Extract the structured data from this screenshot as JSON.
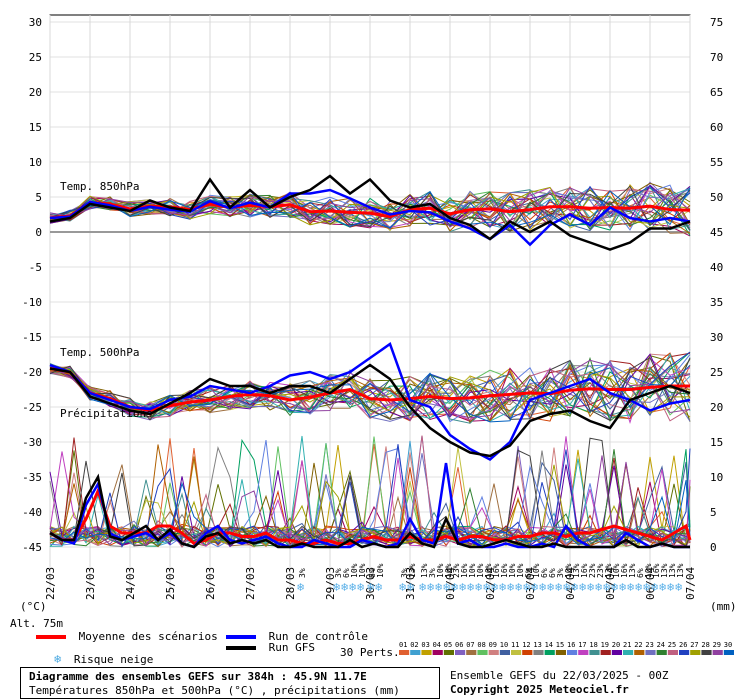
{
  "chart_data": {
    "type": "line",
    "title": "Diagramme des ensembles GEFS sur 384h : 45.9N 11.7E",
    "subtitle": "Températures 850hPa et 500hPa (°C) , précipitations (mm)",
    "ensemble_label": "Ensemble GEFS du 22/03/2025 - 00Z",
    "copyright": "Copyright 2025 Meteociel.fr",
    "left_axis": {
      "unit": "(°C)",
      "ticks": [
        30,
        25,
        20,
        15,
        10,
        5,
        0,
        -5,
        -10,
        -15,
        -20,
        -25,
        -30,
        -35,
        -40,
        -45
      ],
      "range": [
        -45,
        30
      ]
    },
    "right_axis": {
      "unit": "(mm)",
      "ticks": [
        75,
        70,
        65,
        60,
        55,
        50,
        45,
        40,
        35,
        30,
        25,
        20,
        15,
        10,
        5,
        0
      ]
    },
    "x_ticks": [
      "22/03",
      "23/03",
      "24/03",
      "25/03",
      "26/03",
      "27/03",
      "28/03",
      "29/03",
      "30/03",
      "31/03",
      "01/04",
      "02/04",
      "03/04",
      "04/04",
      "05/04",
      "06/04",
      "07/04"
    ],
    "altitude": "Alt. 75m",
    "panel_labels": {
      "t850": "Temp. 850hPa",
      "t500": "Temp. 500hPa",
      "precip": "Précipitations"
    },
    "legend": {
      "mean": "Moyenne des scénarios",
      "control": "Run de contrôle",
      "gfs": "Run GFS",
      "snow": "Risque neige",
      "perts_label": "30 Perts.",
      "pert_numbers": [
        "01",
        "02",
        "03",
        "04",
        "05",
        "06",
        "07",
        "08",
        "09",
        "10",
        "11",
        "12",
        "13",
        "14",
        "15",
        "16",
        "17",
        "18",
        "19",
        "20",
        "21",
        "22",
        "23",
        "24",
        "25",
        "26",
        "27",
        "28",
        "29",
        "30"
      ],
      "pert_colors": [
        "#e06030",
        "#40a0d0",
        "#c0a000",
        "#a00060",
        "#607000",
        "#8060c0",
        "#a07040",
        "#60c060",
        "#d08080",
        "#4060a0",
        "#c0c040",
        "#d04000",
        "#808080",
        "#00a060",
        "#806000",
        "#6080e0",
        "#c040c0",
        "#409090",
        "#a02020",
        "#6000a0",
        "#30b0b0",
        "#b06000",
        "#7070c0",
        "#308030",
        "#c06080",
        "#2040c0",
        "#a0a000",
        "#404040",
        "#9040a0",
        "#0060c0"
      ]
    },
    "snow_risk": [
      {
        "day": 6.3,
        "pct": "3%"
      },
      {
        "day": 7.2,
        "pct": "3%"
      },
      {
        "day": 7.4,
        "pct": "6%"
      },
      {
        "day": 7.6,
        "pct": "10%"
      },
      {
        "day": 7.8,
        "pct": "10%"
      },
      {
        "day": 8.05,
        "pct": "6%"
      },
      {
        "day": 8.25,
        "pct": "10%"
      },
      {
        "day": 8.85,
        "pct": "3%"
      },
      {
        "day": 9.05,
        "pct": "13%"
      },
      {
        "day": 9.35,
        "pct": "13%"
      },
      {
        "day": 9.55,
        "pct": "3%"
      },
      {
        "day": 9.75,
        "pct": "10%"
      },
      {
        "day": 9.95,
        "pct": "16%"
      },
      {
        "day": 10.15,
        "pct": "23%"
      },
      {
        "day": 10.35,
        "pct": "16%"
      },
      {
        "day": 10.55,
        "pct": "10%"
      },
      {
        "day": 10.75,
        "pct": "10%"
      },
      {
        "day": 10.95,
        "pct": "16%"
      },
      {
        "day": 11.15,
        "pct": "16%"
      },
      {
        "day": 11.35,
        "pct": "16%"
      },
      {
        "day": 11.55,
        "pct": "10%"
      },
      {
        "day": 11.75,
        "pct": "10%"
      },
      {
        "day": 11.95,
        "pct": "6%"
      },
      {
        "day": 12.15,
        "pct": "10%"
      },
      {
        "day": 12.35,
        "pct": "6%"
      },
      {
        "day": 12.55,
        "pct": "6%"
      },
      {
        "day": 12.75,
        "pct": "3%"
      },
      {
        "day": 12.95,
        "pct": "10%"
      },
      {
        "day": 13.15,
        "pct": "13%"
      },
      {
        "day": 13.35,
        "pct": "16%"
      },
      {
        "day": 13.55,
        "pct": "23%"
      },
      {
        "day": 13.75,
        "pct": "23%"
      },
      {
        "day": 13.95,
        "pct": "13%"
      },
      {
        "day": 14.15,
        "pct": "10%"
      },
      {
        "day": 14.35,
        "pct": "16%"
      },
      {
        "day": 14.55,
        "pct": "13%"
      },
      {
        "day": 14.75,
        "pct": "6%"
      },
      {
        "day": 14.95,
        "pct": "10%"
      },
      {
        "day": 15.15,
        "pct": "16%"
      },
      {
        "day": 15.35,
        "pct": "13%"
      },
      {
        "day": 15.55,
        "pct": "13%"
      },
      {
        "day": 15.75,
        "pct": "13%"
      }
    ],
    "series": [
      {
        "name": "Moyenne des scénarios",
        "role": "t850",
        "color": "#ff0000",
        "x": [
          0,
          0.5,
          1,
          1.5,
          2,
          2.5,
          3,
          3.5,
          4,
          4.5,
          5,
          5.5,
          6,
          6.5,
          7,
          7.5,
          8,
          8.5,
          9,
          9.5,
          10,
          10.5,
          11,
          11.5,
          12,
          12.5,
          13,
          13.5,
          14,
          14.5,
          15,
          15.5,
          16
        ],
        "y": [
          2,
          2.3,
          4.2,
          4,
          3.3,
          3.7,
          3.6,
          3.2,
          4,
          3.5,
          3.8,
          3.6,
          3.9,
          2.9,
          3,
          2.8,
          2.7,
          2.2,
          3.2,
          3.4,
          2.6,
          3.2,
          3.3,
          2.9,
          3.2,
          3.6,
          3.6,
          3.4,
          3.5,
          3.4,
          3.7,
          3.2,
          3.1
        ]
      },
      {
        "name": "Run de contrôle",
        "role": "t850",
        "color": "#0000ff",
        "x": [
          0,
          0.5,
          1,
          1.5,
          2,
          2.5,
          3,
          3.5,
          4,
          4.5,
          5,
          5.5,
          6,
          6.5,
          7,
          7.5,
          8,
          8.5,
          9,
          9.5,
          10,
          10.5,
          11,
          11.5,
          12,
          12.5,
          13,
          13.5,
          14,
          14.5,
          15,
          15.5,
          16
        ],
        "y": [
          2,
          2.2,
          4.3,
          3.8,
          3,
          3.6,
          3.2,
          2.9,
          4.4,
          3.4,
          4.2,
          3.5,
          5.5,
          5.5,
          6,
          4.8,
          3.5,
          2.5,
          3,
          2.8,
          1.5,
          0.5,
          -1,
          1,
          -1.8,
          1,
          2.5,
          1,
          3.5,
          2,
          1.5,
          2,
          1.5
        ]
      },
      {
        "name": "Run GFS",
        "role": "t850",
        "color": "#000000",
        "x": [
          0,
          0.5,
          1,
          1.5,
          2,
          2.5,
          3,
          3.5,
          4,
          4.5,
          5,
          5.5,
          6,
          6.5,
          7,
          7.5,
          8,
          8.5,
          9,
          9.5,
          10,
          10.5,
          11,
          11.5,
          12,
          12.5,
          13,
          13.5,
          14,
          14.5,
          15,
          15.5,
          16
        ],
        "y": [
          1.5,
          2,
          4,
          3.5,
          3,
          4.5,
          3.5,
          3,
          7.5,
          3.5,
          6,
          3.5,
          5,
          6,
          8,
          5.5,
          7.5,
          4.5,
          3.5,
          4,
          2,
          1,
          -1,
          1.5,
          0,
          1.5,
          -0.5,
          -1.5,
          -2.5,
          -1.5,
          0.5,
          0.5,
          1.5
        ]
      },
      {
        "name": "Moyenne des scénarios",
        "role": "t500",
        "color": "#ff0000",
        "x": [
          0,
          0.5,
          1,
          1.5,
          2,
          2.5,
          3,
          3.5,
          4,
          4.5,
          5,
          5.5,
          6,
          6.5,
          7,
          7.5,
          8,
          8.5,
          9,
          9.5,
          10,
          10.5,
          11,
          11.5,
          12,
          12.5,
          13,
          13.5,
          14,
          14.5,
          15,
          15.5,
          16
        ],
        "y": [
          -19.5,
          -20,
          -23,
          -23.8,
          -25,
          -25.5,
          -24.8,
          -24.3,
          -24,
          -23.5,
          -23.2,
          -23.4,
          -24,
          -23.6,
          -23,
          -22.5,
          -23.8,
          -24,
          -23.8,
          -23.5,
          -23.8,
          -23.7,
          -23.4,
          -23.2,
          -23,
          -23.1,
          -22.6,
          -22.4,
          -22.5,
          -22.5,
          -22.2,
          -22,
          -22
        ]
      },
      {
        "name": "Run de contrôle",
        "role": "t500",
        "color": "#0000ff",
        "x": [
          0,
          0.5,
          1,
          1.5,
          2,
          2.5,
          3,
          3.5,
          4,
          4.5,
          5,
          5.5,
          6,
          6.5,
          7,
          7.5,
          8,
          8.5,
          9,
          9.5,
          10,
          10.5,
          11,
          11.5,
          12,
          12.5,
          13,
          13.5,
          14,
          14.5,
          15,
          15.5,
          16
        ],
        "y": [
          -19,
          -20,
          -23,
          -24,
          -25,
          -25.3,
          -24,
          -23.5,
          -22,
          -22.5,
          -23,
          -22,
          -20.5,
          -20,
          -21,
          -20,
          -18,
          -16,
          -24,
          -25,
          -29,
          -31,
          -32.5,
          -30,
          -24,
          -23,
          -22,
          -21,
          -23,
          -24,
          -25.5,
          -24.5,
          -24
        ]
      },
      {
        "name": "Run GFS",
        "role": "t500",
        "color": "#000000",
        "x": [
          0,
          0.5,
          1,
          1.5,
          2,
          2.5,
          3,
          3.5,
          4,
          4.5,
          5,
          5.5,
          6,
          6.5,
          7,
          7.5,
          8,
          8.5,
          9,
          9.5,
          10,
          10.5,
          11,
          11.5,
          12,
          12.5,
          13,
          13.5,
          14,
          14.5,
          15,
          15.5,
          16
        ],
        "y": [
          -19.5,
          -20,
          -23.5,
          -24.5,
          -25.5,
          -26,
          -24.5,
          -23,
          -21,
          -22,
          -22,
          -23,
          -22,
          -22,
          -23,
          -21,
          -19,
          -21,
          -25,
          -28,
          -30,
          -31.5,
          -32,
          -30.5,
          -27,
          -26,
          -25.5,
          -27,
          -28,
          -24,
          -23,
          -22,
          -23
        ]
      },
      {
        "name": "Moyenne des scénarios",
        "role": "precip",
        "color": "#ff0000",
        "x": [
          0,
          0.3,
          0.6,
          0.9,
          1.2,
          1.5,
          1.8,
          2.1,
          2.4,
          2.7,
          3,
          3.3,
          3.6,
          3.9,
          4.2,
          4.5,
          4.8,
          5.1,
          5.4,
          5.7,
          6,
          6.3,
          6.6,
          6.9,
          7.2,
          7.5,
          7.8,
          8.1,
          8.4,
          8.7,
          9,
          9.3,
          9.6,
          9.9,
          10.2,
          10.5,
          10.8,
          11.1,
          11.4,
          11.7,
          12,
          12.3,
          12.6,
          12.9,
          13.2,
          13.5,
          13.8,
          14.1,
          14.4,
          14.7,
          15,
          15.3,
          15.6,
          15.9,
          16
        ],
        "y": [
          2,
          1,
          1,
          4,
          8,
          3,
          2,
          2,
          2,
          3,
          3,
          2,
          0.5,
          1,
          2,
          2,
          1.5,
          1.5,
          2,
          1,
          1,
          0.5,
          0.5,
          1,
          0.5,
          0.5,
          1,
          1.5,
          1,
          1,
          1.5,
          1,
          1,
          1.5,
          1,
          1.5,
          1.5,
          1,
          1,
          1.5,
          1.5,
          2,
          2,
          1.5,
          2,
          2,
          2.5,
          3,
          2.5,
          2,
          1.5,
          1,
          2,
          3,
          1
        ]
      },
      {
        "name": "Run de contrôle",
        "role": "precip",
        "color": "#0000ff",
        "x": [
          0,
          0.3,
          0.6,
          0.9,
          1.2,
          1.5,
          1.8,
          2.1,
          2.4,
          2.7,
          3,
          3.3,
          3.6,
          3.9,
          4.2,
          4.5,
          4.8,
          5.1,
          5.4,
          5.7,
          6,
          6.3,
          6.6,
          6.9,
          7.2,
          7.5,
          7.8,
          8.1,
          8.4,
          8.7,
          9,
          9.3,
          9.6,
          9.9,
          10.2,
          10.5,
          10.8,
          11.1,
          11.4,
          11.7,
          12,
          12.3,
          12.6,
          12.9,
          13.2,
          13.5,
          13.8,
          14.1,
          14.4,
          14.7,
          15,
          15.3,
          15.6,
          15.9,
          16
        ],
        "y": [
          2,
          1,
          0.5,
          6,
          9,
          2,
          1,
          1.5,
          2,
          1,
          2,
          0.5,
          0,
          2,
          3,
          1,
          0.5,
          1,
          1.5,
          0.5,
          0,
          0,
          1,
          0.5,
          0,
          0,
          1,
          0.5,
          0,
          0.5,
          4,
          1,
          0.5,
          12,
          0.5,
          1,
          0,
          0,
          0.5,
          0,
          0,
          0.5,
          0,
          3,
          1,
          0,
          0,
          0,
          2,
          1,
          0,
          0.5,
          0,
          0,
          0
        ]
      },
      {
        "name": "Run GFS",
        "role": "precip",
        "color": "#000000",
        "x": [
          0,
          0.3,
          0.6,
          0.9,
          1.2,
          1.5,
          1.8,
          2.1,
          2.4,
          2.7,
          3,
          3.3,
          3.6,
          3.9,
          4.2,
          4.5,
          4.8,
          5.1,
          5.4,
          5.7,
          6,
          6.3,
          6.6,
          6.9,
          7.2,
          7.5,
          7.8,
          8.1,
          8.4,
          8.7,
          9,
          9.3,
          9.6,
          9.9,
          10.2,
          10.5,
          10.8,
          11.1,
          11.4,
          11.7,
          12,
          12.3,
          12.6,
          12.9,
          13.2,
          13.5,
          13.8,
          14.1,
          14.4,
          14.7,
          15,
          15.3,
          15.6,
          15.9,
          16
        ],
        "y": [
          2,
          1,
          1,
          7,
          10,
          1.5,
          1,
          2,
          3,
          1,
          2.5,
          0.5,
          0,
          1.5,
          2,
          0.5,
          1,
          0.5,
          1,
          0,
          0,
          0.5,
          0,
          0,
          0,
          1,
          0,
          0.5,
          0,
          0,
          2,
          0.5,
          0,
          4,
          0.5,
          0,
          0,
          0.5,
          1,
          0.5,
          0,
          0,
          0.5,
          0,
          0,
          0,
          0,
          0,
          1,
          0,
          0,
          0.5,
          0,
          0,
          0
        ]
      }
    ]
  }
}
